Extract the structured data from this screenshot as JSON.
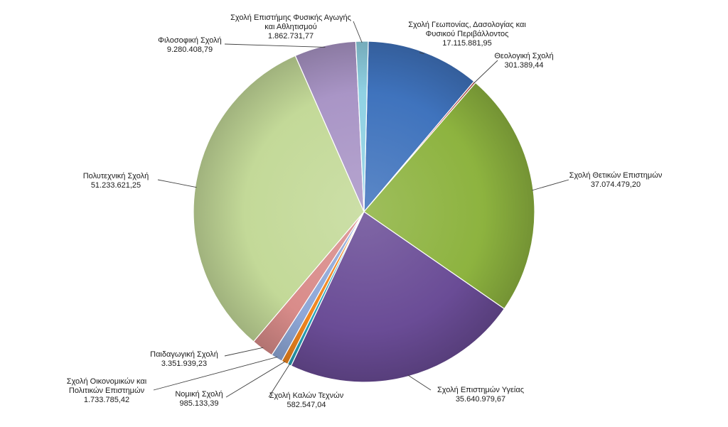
{
  "chart_data": {
    "type": "pie",
    "title": "",
    "slices": [
      {
        "label_lines": [
          "Σχολή Γεωπονίας, Δασολογίας και",
          "Φυσικού Περιβάλλοντος"
        ],
        "value_text": "17.115.881,95",
        "value": 17115881.95,
        "color": "#3f73bd"
      },
      {
        "label_lines": [
          "Θεολογική Σχολή"
        ],
        "value_text": "301.389,44",
        "value": 301389.44,
        "color": "#c0504d"
      },
      {
        "label_lines": [
          "Σχολή Θετικών Επιστημών"
        ],
        "value_text": "37.074.479,20",
        "value": 37074479.2,
        "color": "#8db33f"
      },
      {
        "label_lines": [
          "Σχολή Επιστημών Υγείας"
        ],
        "value_text": "35.640.979,67",
        "value": 35640979.67,
        "color": "#6a4c96"
      },
      {
        "label_lines": [
          "Σχολή Καλών Τεχνών"
        ],
        "value_text": "582.547,04",
        "value": 582547.04,
        "color": "#2aa4b8"
      },
      {
        "label_lines": [
          "Νομική Σχολή"
        ],
        "value_text": "985.133,39",
        "value": 985133.39,
        "color": "#f0861f"
      },
      {
        "label_lines": [
          "Σχολή Οικονομικών και",
          "Πολιτικών Επιστημών"
        ],
        "value_text": "1.733.785,42",
        "value": 1733785.42,
        "color": "#8fa8d8"
      },
      {
        "label_lines": [
          "Παιδαγωγική Σχολή"
        ],
        "value_text": "3.351.939,23",
        "value": 3351939.23,
        "color": "#d98c8a"
      },
      {
        "label_lines": [
          "Πολυτεχνική Σχολή"
        ],
        "value_text": "51.233.621,25",
        "value": 51233621.25,
        "color": "#c3d998"
      },
      {
        "label_lines": [
          "Φιλοσοφική Σχολή"
        ],
        "value_text": "9.280.408,79",
        "value": 9280408.79,
        "color": "#a995c6"
      },
      {
        "label_lines": [
          "Σχολή Επιστήμης Φυσικής Αγωγής",
          "και Αθλητισμού"
        ],
        "value_text": "1.862.731,77",
        "value": 1862731.77,
        "color": "#8fd1e3"
      }
    ],
    "legend": "none"
  }
}
